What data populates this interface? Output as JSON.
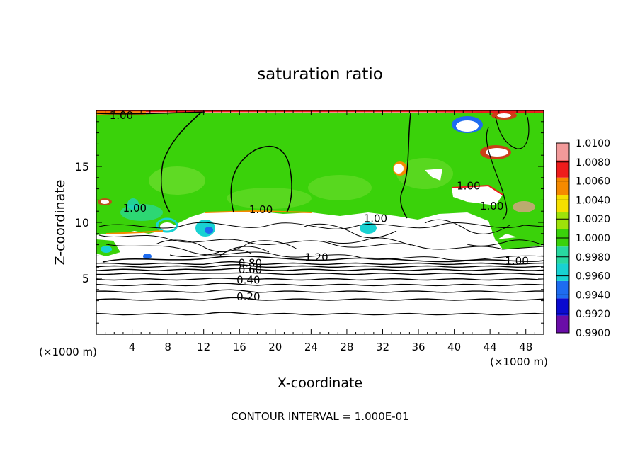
{
  "chart_data": {
    "type": "heatmap",
    "title": "saturation ratio",
    "xlabel": "X-coordinate",
    "ylabel": "Z-coordinate",
    "x_unit_left": "(×1000 m)",
    "x_unit_right": "(×1000 m)",
    "footer": "CONTOUR INTERVAL = 1.000E-01",
    "xlim": [
      0,
      50
    ],
    "ylim": [
      0,
      20
    ],
    "x_ticks": [
      4,
      8,
      12,
      16,
      20,
      24,
      28,
      32,
      36,
      40,
      44,
      48
    ],
    "y_ticks": [
      5,
      10,
      15
    ],
    "colorbar": {
      "levels": [
        "0.9900",
        "0.9920",
        "0.9940",
        "0.9960",
        "0.9980",
        "1.0000",
        "1.0020",
        "1.0040",
        "1.0060",
        "1.0080",
        "1.0100"
      ],
      "colors": [
        "#6a0da8",
        "#0a0ad0",
        "#1e6cf0",
        "#18d2d2",
        "#28d8a0",
        "#3ad20a",
        "#9ee20a",
        "#f5e000",
        "#f58a00",
        "#ee1c1c",
        "#f29a9a"
      ]
    },
    "contour_labels": [
      {
        "text": "1.00",
        "x": 2.8,
        "y": 19.3
      },
      {
        "text": "1.00",
        "x": 18.4,
        "y": 10.9
      },
      {
        "text": "1.00",
        "x": 31.2,
        "y": 10.1
      },
      {
        "text": "1.00",
        "x": 41.6,
        "y": 13.0
      },
      {
        "text": "1.00",
        "x": 4.3,
        "y": 11.0
      },
      {
        "text": "1.00",
        "x": 44.2,
        "y": 11.2
      },
      {
        "text": "1.00",
        "x": 47.0,
        "y": 6.3
      },
      {
        "text": "1.20",
        "x": 24.6,
        "y": 6.6
      },
      {
        "text": "0.80",
        "x": 17.2,
        "y": 6.1
      },
      {
        "text": "0.60",
        "x": 17.2,
        "y": 5.5
      },
      {
        "text": "0.40",
        "x": 17.0,
        "y": 4.6
      },
      {
        "text": "0.20",
        "x": 17.0,
        "y": 3.1
      }
    ],
    "lower_contour_levels": [
      {
        "value": 0.2,
        "z": 3.1
      },
      {
        "value": 0.3,
        "z": 3.8
      },
      {
        "value": 0.4,
        "z": 4.4
      },
      {
        "value": 0.5,
        "z": 4.9
      },
      {
        "value": 0.6,
        "z": 5.4
      },
      {
        "value": 0.7,
        "z": 5.75
      },
      {
        "value": 0.8,
        "z": 6.05
      },
      {
        "value": 0.9,
        "z": 6.3
      }
    ]
  }
}
